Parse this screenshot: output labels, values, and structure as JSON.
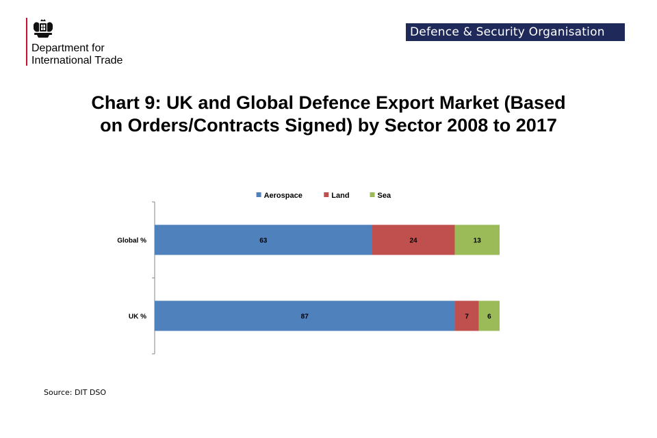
{
  "header": {
    "department_line1": "Department for",
    "department_line2": "International Trade",
    "badge": "Defence & Security Organisation",
    "crest_icon": "royal-coat-of-arms-icon",
    "accent_color": "#c8102e",
    "badge_color": "#1f2a5a"
  },
  "chart_data": {
    "type": "bar",
    "orientation": "horizontal",
    "stacked": true,
    "title": "Chart 9: UK and Global Defence Export Market (Based on Orders/Contracts Signed) by Sector 2008 to 2017",
    "title_line1": "Chart 9: UK and Global Defence Export Market (Based",
    "title_line2": "on Orders/Contracts Signed) by Sector 2008 to 2017",
    "categories": [
      "Global %",
      "UK %"
    ],
    "series": [
      {
        "name": "Aerospace",
        "values": [
          63,
          87
        ],
        "color": "#4f81bd"
      },
      {
        "name": "Land",
        "values": [
          24,
          7
        ],
        "color": "#c0504d"
      },
      {
        "name": "Sea",
        "values": [
          13,
          6
        ],
        "color": "#9bbb59"
      }
    ],
    "xlim": [
      0,
      100
    ],
    "grid": false,
    "legend": "top-center",
    "data_labels": true
  },
  "footer": {
    "source": "Source: DIT  DSO"
  }
}
